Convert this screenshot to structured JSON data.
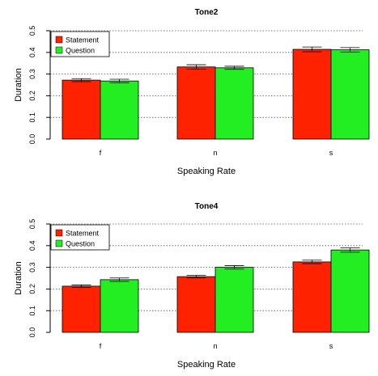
{
  "chart_data": [
    {
      "type": "bar",
      "title": "Tone2",
      "xlabel": "Speaking Rate",
      "ylabel": "Duration",
      "categories": [
        "f",
        "n",
        "s"
      ],
      "ylim": [
        0,
        0.5
      ],
      "yticks": [
        "0.0",
        "0.1",
        "0.2",
        "0.3",
        "0.4",
        "0.5"
      ],
      "grid": "horizontal dotted",
      "legend_position": "top-left",
      "series": [
        {
          "name": "Statement",
          "color": "#ff2200",
          "values": [
            0.272,
            0.333,
            0.414
          ],
          "errors": [
            0.007,
            0.01,
            0.011
          ]
        },
        {
          "name": "Question",
          "color": "#22ee22",
          "values": [
            0.268,
            0.329,
            0.412
          ],
          "errors": [
            0.008,
            0.007,
            0.01
          ]
        }
      ]
    },
    {
      "type": "bar",
      "title": "Tone4",
      "xlabel": "Speaking Rate",
      "ylabel": "Duration",
      "categories": [
        "f",
        "n",
        "s"
      ],
      "ylim": [
        0,
        0.5
      ],
      "yticks": [
        "0.0",
        "0.1",
        "0.2",
        "0.3",
        "0.4",
        "0.5"
      ],
      "grid": "horizontal dotted",
      "legend_position": "top-left",
      "series": [
        {
          "name": "Statement",
          "color": "#ff2200",
          "values": [
            0.213,
            0.257,
            0.325
          ],
          "errors": [
            0.006,
            0.006,
            0.008
          ]
        },
        {
          "name": "Question",
          "color": "#22ee22",
          "values": [
            0.243,
            0.3,
            0.38
          ],
          "errors": [
            0.008,
            0.008,
            0.01
          ]
        }
      ]
    }
  ]
}
